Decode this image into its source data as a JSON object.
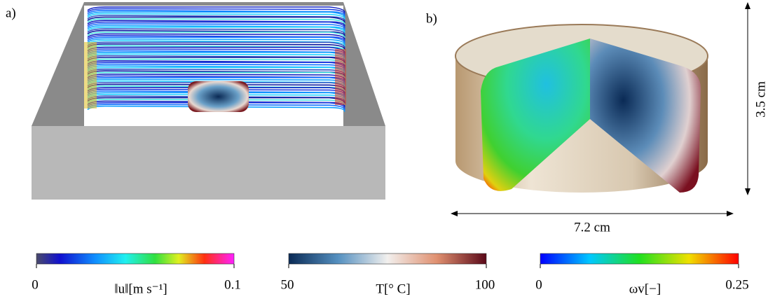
{
  "panels": [
    {
      "label": "a)"
    },
    {
      "label": "b)",
      "height": "3.5 cm",
      "width": "7.2 cm"
    }
  ],
  "colorbars": [
    {
      "label": "‖u‖[m s⁻¹]",
      "min": 0,
      "max": 0.1
    },
    {
      "label": "T[° C]",
      "min": 50,
      "max": 100
    },
    {
      "label": "ωv[−]",
      "min": 0,
      "max": 0.25
    }
  ]
}
